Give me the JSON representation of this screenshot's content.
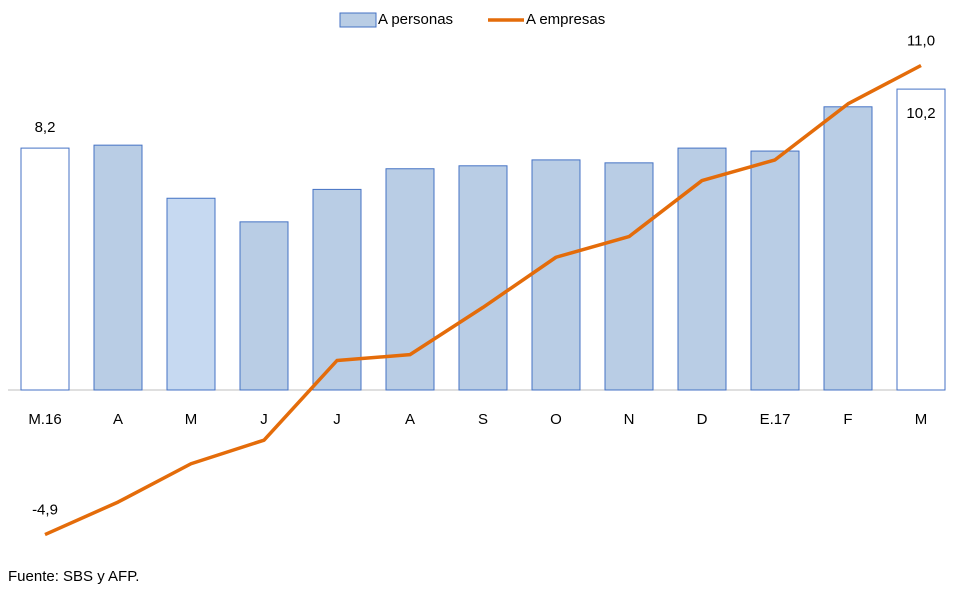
{
  "chart_data": {
    "type": "bar-line",
    "categories": [
      "M.16",
      "A",
      "M",
      "J",
      "J",
      "A",
      "S",
      "O",
      "N",
      "D",
      "E.17",
      "F",
      "M"
    ],
    "series": [
      {
        "name": "A personas",
        "type": "bar",
        "color": "#b9cde5",
        "stroke": "#4472c4",
        "bar_colors": [
          "#ffffff",
          "#b9cde5",
          "#c6d9f1",
          "#b9cde5",
          "#b9cde5",
          "#b9cde5",
          "#b9cde5",
          "#b9cde5",
          "#b9cde5",
          "#b9cde5",
          "#b9cde5",
          "#b9cde5",
          "#ffffff"
        ],
        "values": [
          8.2,
          8.3,
          6.5,
          5.7,
          6.8,
          7.5,
          7.6,
          7.8,
          7.7,
          8.2,
          8.1,
          9.6,
          10.2
        ],
        "value_labels": [
          "8,2",
          null,
          null,
          null,
          null,
          null,
          null,
          null,
          null,
          null,
          null,
          null,
          "10,2"
        ]
      },
      {
        "name": "A empresas",
        "type": "line",
        "color": "#e46c0a",
        "values": [
          -4.9,
          -3.8,
          -2.5,
          -1.7,
          1.0,
          1.2,
          2.8,
          4.5,
          5.2,
          7.1,
          7.8,
          9.7,
          11.0
        ],
        "value_labels": [
          "-4,9",
          null,
          null,
          null,
          null,
          null,
          null,
          null,
          null,
          null,
          null,
          null,
          "11,0"
        ]
      }
    ],
    "ylim": [
      -6,
      12
    ],
    "source": "Fuente: SBS y AFP."
  }
}
